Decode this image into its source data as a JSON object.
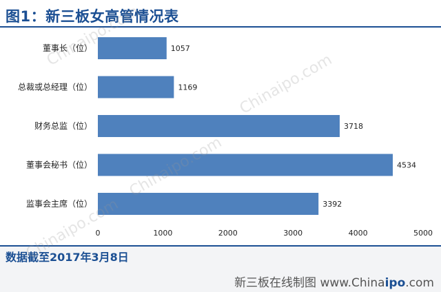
{
  "header": {
    "title": "图1：新三板女高管情况表"
  },
  "note": "数据截至2017年3月8日",
  "source": {
    "prefix": "新三板在线制图 www.China",
    "bold": "ipo",
    "suffix": ".com"
  },
  "watermark_text": "Chinaipo.com",
  "colors": {
    "accent": "#1b4f93",
    "bar": "#4f81bd"
  },
  "chart_data": {
    "type": "bar",
    "orientation": "horizontal",
    "categories": [
      "董事长（位）",
      "总裁或总经理（位）",
      "财务总监（位）",
      "董事会秘书（位）",
      "监事会主席（位）"
    ],
    "values": [
      1057,
      1169,
      3718,
      4534,
      3392
    ],
    "xlim": [
      0,
      5000
    ],
    "xticks": [
      0,
      1000,
      2000,
      3000,
      4000,
      5000
    ],
    "grid": false,
    "legend": "none",
    "title": "新三板女高管情况表"
  }
}
